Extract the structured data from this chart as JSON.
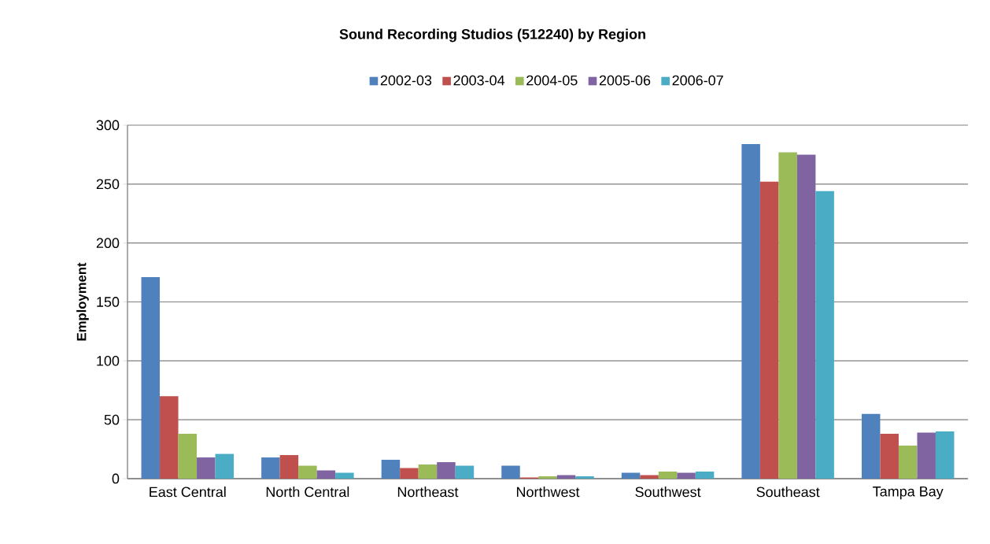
{
  "chart_data": {
    "type": "bar",
    "title": "Sound Recording Studios (512240) by Region",
    "ylabel": "Employment",
    "categories": [
      "East Central",
      "North Central",
      "Northeast",
      "Northwest",
      "Southwest",
      "Southeast",
      "Tampa Bay"
    ],
    "series": [
      {
        "name": "2002-03",
        "color": "#4f81bd",
        "values": [
          171,
          18,
          16,
          11,
          5,
          284,
          55
        ]
      },
      {
        "name": "2003-04",
        "color": "#c0504d",
        "values": [
          70,
          20,
          9,
          1,
          3,
          252,
          38
        ]
      },
      {
        "name": "2004-05",
        "color": "#9bbb59",
        "values": [
          38,
          11,
          12,
          2,
          6,
          277,
          28
        ]
      },
      {
        "name": "2005-06",
        "color": "#8064a2",
        "values": [
          18,
          7,
          14,
          3,
          5,
          275,
          39
        ]
      },
      {
        "name": "2006-07",
        "color": "#4bacc6",
        "values": [
          21,
          5,
          11,
          2,
          6,
          244,
          40
        ]
      }
    ],
    "ylim": [
      0,
      300
    ],
    "yticks": [
      0,
      50,
      100,
      150,
      200,
      250,
      300
    ],
    "grid": "y",
    "legend": "top"
  }
}
